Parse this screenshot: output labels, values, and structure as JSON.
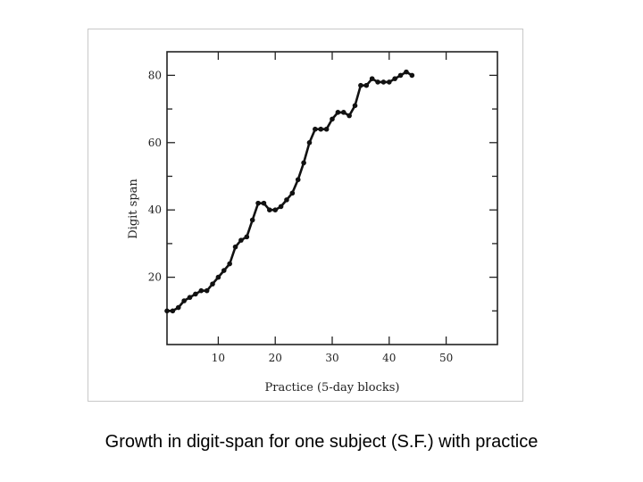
{
  "caption": "Growth in digit-span for one subject (S.F.) with practice",
  "chart_data": {
    "type": "line",
    "xlabel": "Practice (5-day blocks)",
    "ylabel": "Digit span",
    "xlim": [
      1,
      59
    ],
    "ylim": [
      0,
      87
    ],
    "xticks": [
      10,
      20,
      30,
      40,
      50
    ],
    "yticks": [
      20,
      40,
      60,
      80
    ],
    "series": [
      {
        "x": [
          1,
          2,
          3,
          4,
          5,
          6,
          7,
          8,
          9,
          10,
          11,
          12,
          13,
          14,
          15,
          16,
          17,
          18,
          19,
          20,
          21,
          22,
          23,
          24,
          25,
          26,
          27,
          28,
          29,
          30,
          31,
          32,
          33,
          34,
          35,
          36,
          37,
          38,
          39,
          40,
          41,
          42,
          43,
          44
        ],
        "y": [
          10,
          10,
          11,
          13,
          14,
          15,
          16,
          16,
          18,
          20,
          22,
          24,
          29,
          31,
          32,
          37,
          42,
          42,
          40,
          40,
          41,
          43,
          45,
          49,
          54,
          60,
          64,
          64,
          64,
          67,
          69,
          69,
          68,
          71,
          77,
          77,
          79,
          78,
          78,
          78,
          79,
          80,
          81,
          80
        ],
        "color": "#111111"
      }
    ]
  }
}
